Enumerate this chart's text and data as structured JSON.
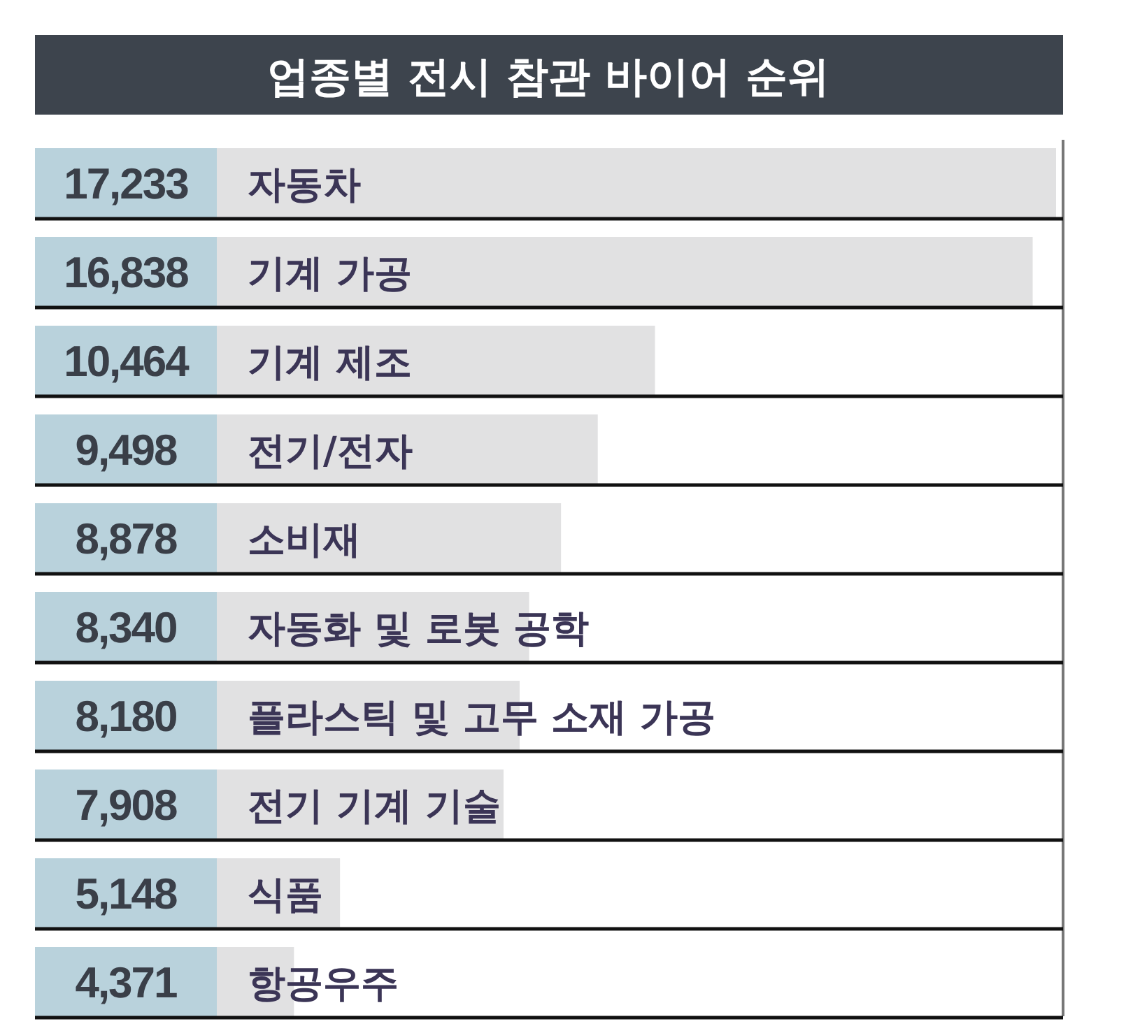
{
  "chart_data": {
    "type": "bar",
    "orientation": "horizontal",
    "title": "업종별 전시 참관 바이어 순위",
    "categories": [
      "자동차",
      "기계 가공",
      "기계 제조",
      "전기/전자",
      "소비재",
      "자동화 및 로봇 공학",
      "플라스틱 및 고무 소재 가공",
      "전기 기계 기술",
      "식품",
      "항공우주"
    ],
    "values": [
      17233,
      16838,
      10464,
      9498,
      8878,
      8340,
      8180,
      7908,
      5148,
      4371
    ],
    "value_labels": [
      "17,233",
      "16,838",
      "10,464",
      "9,498",
      "8,878",
      "8,340",
      "8,180",
      "7,908",
      "5,148",
      "4,371"
    ],
    "color": "#e1e1e2"
  }
}
